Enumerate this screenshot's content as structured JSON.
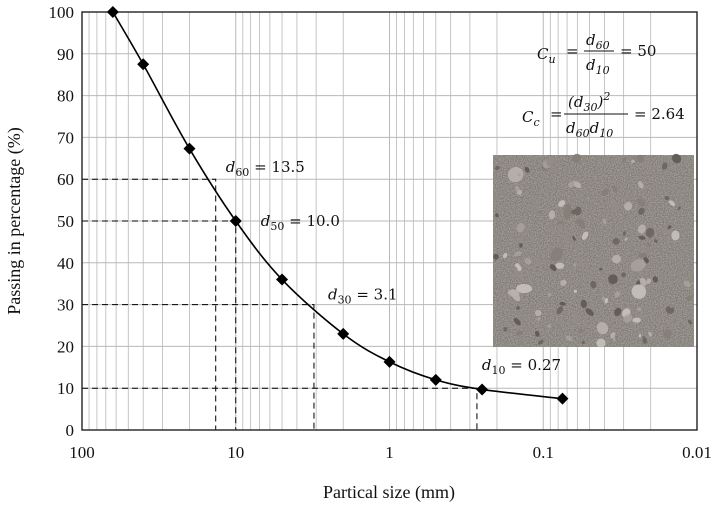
{
  "chart_data": {
    "type": "line",
    "xlabel": "Partical size (mm)",
    "ylabel": "Passing in percentage (%)",
    "x_scale": "log",
    "x_reversed": true,
    "xlim": [
      100,
      0.01
    ],
    "ylim": [
      0,
      100
    ],
    "grid": true,
    "xticks": [
      100,
      10,
      1,
      0.1,
      0.01
    ],
    "xtick_labels": [
      "100",
      "10",
      "1",
      "0.1",
      "0.01"
    ],
    "yticks": [
      0,
      10,
      20,
      30,
      40,
      50,
      60,
      70,
      80,
      90,
      100
    ],
    "ytick_labels": [
      "0",
      "10",
      "20",
      "30",
      "40",
      "50",
      "60",
      "70",
      "80",
      "90",
      "100"
    ],
    "series": [
      {
        "x": [
          63,
          40,
          20,
          10,
          5,
          2,
          1,
          0.5,
          0.25,
          0.075
        ],
        "y": [
          100,
          87.5,
          67.3,
          50,
          36,
          23,
          16.3,
          12,
          9.7,
          7.5
        ]
      }
    ],
    "annotations": [
      {
        "sym": "d",
        "sub": "60",
        "eq": " = 13.5",
        "x": 13.5,
        "y": 60
      },
      {
        "sym": "d",
        "sub": "50",
        "eq": " = 10.0",
        "x": 10.0,
        "y": 50
      },
      {
        "sym": "d",
        "sub": "30",
        "eq": " = 3.1",
        "x": 3.1,
        "y": 30
      },
      {
        "sym": "d",
        "sub": "10",
        "eq": " = 0.27",
        "x": 0.27,
        "y": 10
      }
    ],
    "formulas": {
      "cu": {
        "lhs": "C",
        "lhs_sub": "u",
        "num": "d",
        "num_sub": "60",
        "den": "d",
        "den_sub": "10",
        "result": "= 50"
      },
      "cc": {
        "lhs": "C",
        "lhs_sub": "c",
        "num": "(d",
        "num_sub": "30",
        "num_tail": ")",
        "num_sup": "2",
        "den": "d",
        "den_sub": "60",
        "den2": "d",
        "den2_sub": "10",
        "result": "= 2.64"
      }
    },
    "colors": {
      "line": "#000000",
      "grid": "#b8b8b8",
      "guide": "#000000"
    },
    "inset_image": "gravel-soil-sample-photo"
  }
}
